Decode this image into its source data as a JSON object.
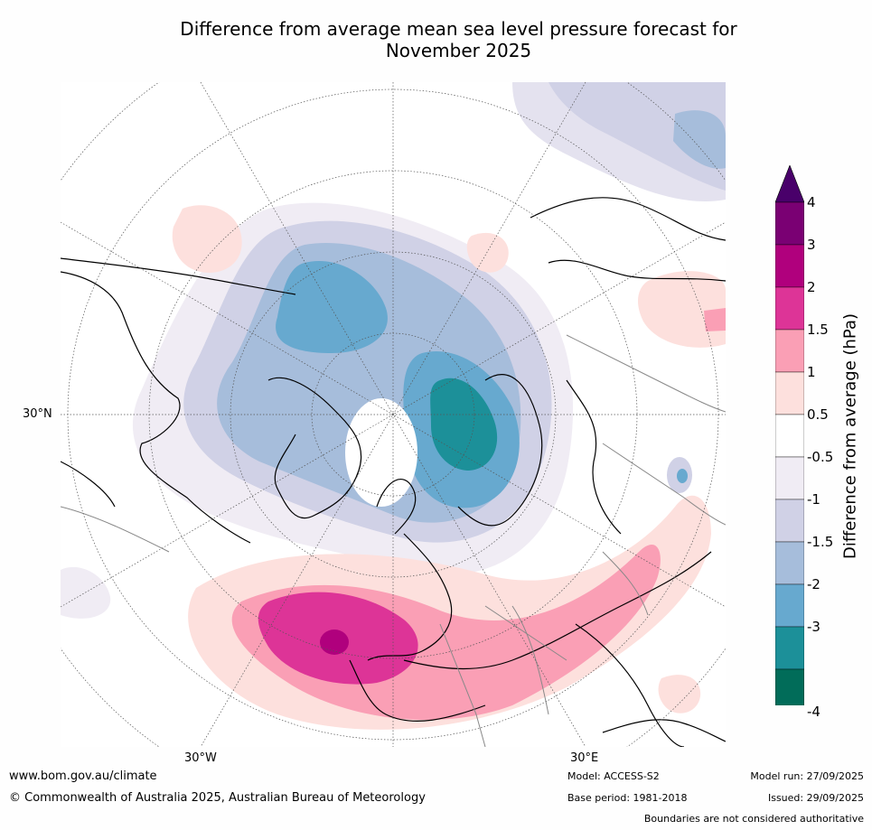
{
  "title_line1": "Difference from average mean sea level pressure forecast for",
  "title_line2": "November 2025",
  "map": {
    "lat_label_30n": "30°N",
    "lon_label_30w": "30°W",
    "lon_label_30e": "30°E"
  },
  "colorbar": {
    "title": "Difference from average (hPa)",
    "ticks": [
      "4",
      "3",
      "2",
      "1.5",
      "1",
      "0.5",
      "-0.5",
      "-1",
      "-1.5",
      "-2",
      "-3",
      "-4"
    ],
    "colors": [
      "#7a0073",
      "#b0007d",
      "#dd3497",
      "#fa9fb5",
      "#fde0dd",
      "#ffffff",
      "#f0ecf4",
      "#d0d1e6",
      "#a6bddb",
      "#67a9cf",
      "#1c9099",
      "#016c59"
    ],
    "over_color": "#49006a",
    "under_color": "#016c59"
  },
  "footer": {
    "website": "www.bom.gov.au/climate",
    "copyright": "© Commonwealth of Australia 2025, Australian Bureau of Meteorology",
    "model": "Model: ACCESS-S2",
    "base_period": "Base period: 1981-2018",
    "model_run": "Model run: 27/09/2025",
    "issued": "Issued: 29/09/2025",
    "disclaimer": "Boundaries are not considered authoritative"
  }
}
